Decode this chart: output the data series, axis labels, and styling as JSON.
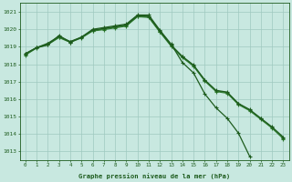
{
  "x_full": [
    0,
    1,
    2,
    3,
    4,
    5,
    6,
    7,
    8,
    9,
    10,
    11,
    12,
    13,
    14,
    15,
    16,
    17,
    18,
    19,
    20,
    21,
    22,
    23
  ],
  "x_short": [
    0,
    1,
    2,
    3,
    4,
    5,
    6,
    7,
    8,
    9,
    10,
    11,
    12,
    13,
    14,
    15,
    16,
    17,
    18,
    19,
    20
  ],
  "line1_y": [
    1018.6,
    1018.95,
    1019.1,
    1019.65,
    1019.25,
    1019.55,
    1020.0,
    1020.1,
    1020.2,
    1020.3,
    1020.82,
    1020.82,
    1019.95,
    1019.15,
    1018.1,
    1017.5,
    1016.3,
    1015.5,
    1014.9,
    1014.05,
    1012.72
  ],
  "line2_y": [
    1018.6,
    1018.95,
    1019.2,
    1019.6,
    1019.3,
    1019.55,
    1019.95,
    1020.05,
    1020.15,
    1020.25,
    1020.78,
    1020.75,
    1019.9,
    1019.1,
    1018.45,
    1017.95,
    1017.1,
    1016.5,
    1016.4,
    1015.75,
    1015.4,
    1014.9,
    1014.4,
    1013.82
  ],
  "line3_y": [
    1018.55,
    1018.95,
    1019.15,
    1019.55,
    1019.28,
    1019.52,
    1019.93,
    1020.02,
    1020.12,
    1020.22,
    1020.75,
    1020.72,
    1019.87,
    1019.07,
    1018.42,
    1017.92,
    1017.07,
    1016.47,
    1016.37,
    1015.72,
    1015.37,
    1014.87,
    1014.37,
    1013.77
  ],
  "line4_y": [
    1018.52,
    1018.92,
    1019.12,
    1019.52,
    1019.25,
    1019.5,
    1019.9,
    1019.98,
    1020.08,
    1020.18,
    1020.72,
    1020.68,
    1019.83,
    1019.03,
    1018.38,
    1017.88,
    1017.03,
    1016.43,
    1016.33,
    1015.68,
    1015.33,
    1014.83,
    1014.33,
    1013.72
  ],
  "ylim": [
    1012.5,
    1021.5
  ],
  "yticks": [
    1013,
    1014,
    1015,
    1016,
    1017,
    1018,
    1019,
    1020,
    1021
  ],
  "xticks": [
    0,
    1,
    2,
    3,
    4,
    5,
    6,
    7,
    8,
    9,
    10,
    11,
    12,
    13,
    14,
    15,
    16,
    17,
    18,
    19,
    20,
    21,
    22,
    23
  ],
  "xlabel": "Graphe pression niveau de la mer (hPa)",
  "bg_color": "#c8e8e0",
  "grid_color": "#aacfcf",
  "line_color_dark": "#1e5c1e",
  "line_color_mid": "#2d7a2d"
}
